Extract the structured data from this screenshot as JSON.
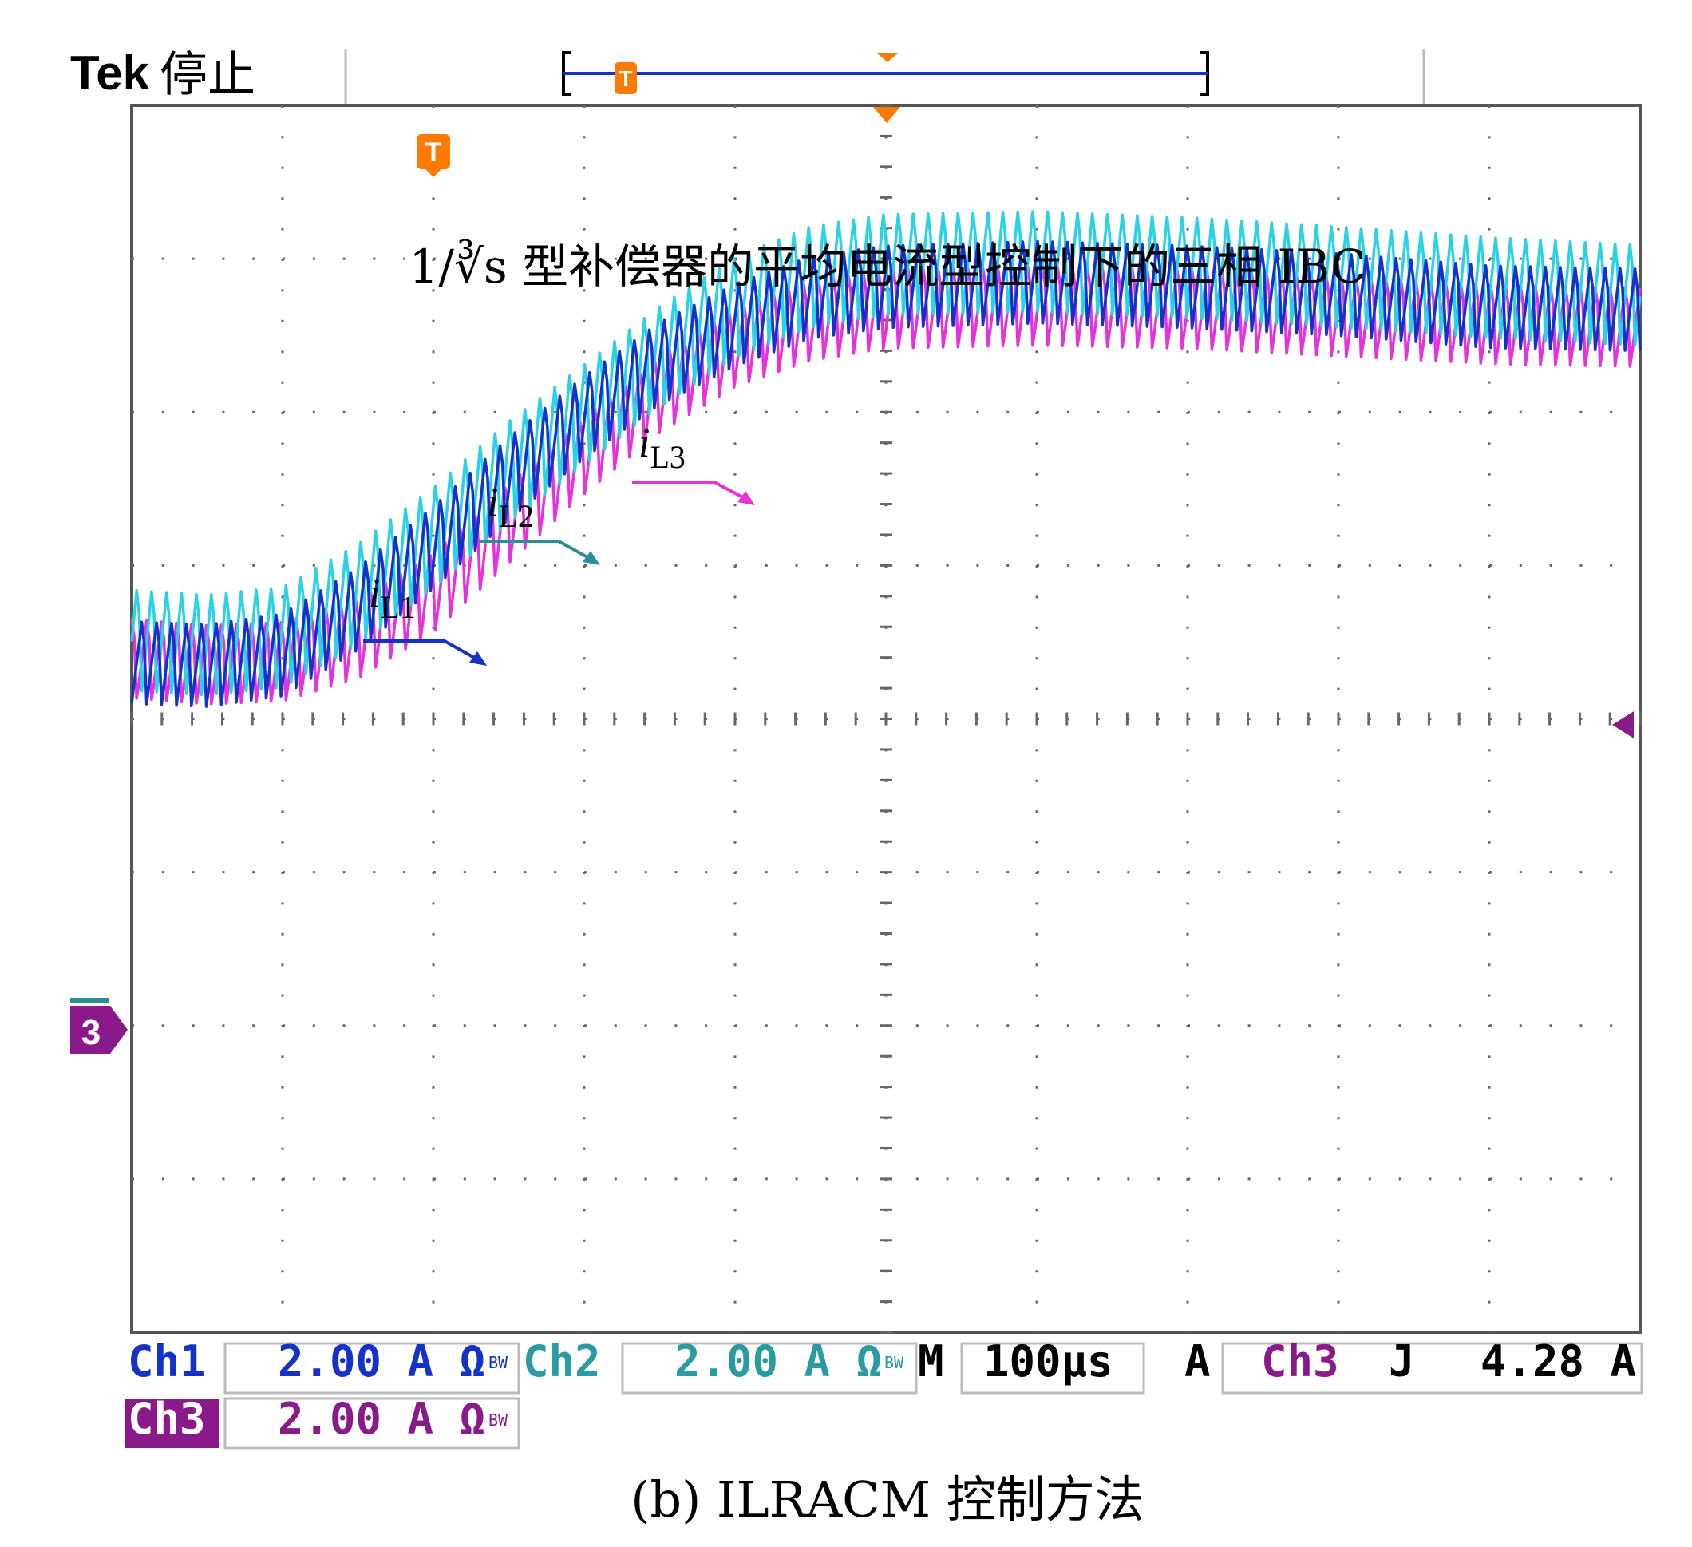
{
  "header": {
    "brand": "Tek",
    "status": "停止"
  },
  "annotation": {
    "title": "1/∛s 型补偿器的平均电流型控制下的三相 IBC",
    "labels": [
      {
        "series": "iL1",
        "italic": "i",
        "sub": "L1"
      },
      {
        "series": "iL2",
        "italic": "i",
        "sub": "L2"
      },
      {
        "series": "iL3",
        "italic": "i",
        "sub": "L3"
      }
    ]
  },
  "markers": {
    "trigger": "T",
    "channel_ground": "3"
  },
  "readout": {
    "ch1": {
      "name": "Ch1",
      "value": "2.00 A Ω",
      "bw": "BW"
    },
    "ch2": {
      "name": "Ch2",
      "value": "2.00 A Ω",
      "bw": "BW"
    },
    "ch3": {
      "name": "Ch3",
      "value": "2.00 A Ω",
      "bw": "BW"
    },
    "timebase": {
      "prefix": "M",
      "value": "100µs"
    },
    "trigger": {
      "mode": "A",
      "source": "Ch3",
      "slope": "Ϳ",
      "level": "4.28 A"
    }
  },
  "caption": "(b) ILRACM 控制方法",
  "colors": {
    "ch1": "#1432c8",
    "ch2": "#2ad2e6",
    "ch3": "#e632dc",
    "trigger": "#ff7a00",
    "label1": "#1432c8",
    "label2": "#2a8f96",
    "label3": "#e632dc",
    "ch3_badge": "#8a1a8a"
  },
  "chart_data": {
    "type": "line",
    "divisions": {
      "x": 10,
      "y": 8
    },
    "x": {
      "unit": "div",
      "range": [
        0,
        10
      ]
    },
    "y": {
      "unit": "div",
      "range": [
        0,
        8
      ],
      "reference_level_div": 2
    },
    "ripple_period_div": 0.099,
    "series": [
      {
        "name": "iL1",
        "ripple_pp_div": 0.6,
        "ripple_phase": 0.0,
        "envelope_mid": [
          [
            0,
            4.4
          ],
          [
            0.5,
            4.38
          ],
          [
            1,
            4.45
          ],
          [
            1.5,
            4.75
          ],
          [
            2,
            5.15
          ],
          [
            2.5,
            5.6
          ],
          [
            3,
            6.0
          ],
          [
            3.5,
            6.35
          ],
          [
            4,
            6.6
          ],
          [
            4.5,
            6.78
          ],
          [
            5,
            6.85
          ],
          [
            6,
            6.88
          ],
          [
            7,
            6.85
          ],
          [
            8,
            6.8
          ],
          [
            9,
            6.72
          ],
          [
            10,
            6.7
          ]
        ]
      },
      {
        "name": "iL2",
        "ripple_pp_div": 0.75,
        "ripple_phase": 0.33,
        "envelope_mid": [
          [
            0,
            4.55
          ],
          [
            0.5,
            4.52
          ],
          [
            1,
            4.57
          ],
          [
            1.5,
            4.85
          ],
          [
            2,
            5.22
          ],
          [
            2.5,
            5.65
          ],
          [
            3,
            6.02
          ],
          [
            3.5,
            6.4
          ],
          [
            4,
            6.72
          ],
          [
            4.5,
            6.92
          ],
          [
            5,
            7.0
          ],
          [
            6,
            7.02
          ],
          [
            7,
            6.98
          ],
          [
            8,
            6.92
          ],
          [
            9,
            6.85
          ],
          [
            10,
            6.8
          ]
        ]
      },
      {
        "name": "iL3",
        "ripple_pp_div": 0.6,
        "ripple_phase": 0.66,
        "envelope_mid": [
          [
            0,
            4.42
          ],
          [
            0.5,
            4.38
          ],
          [
            1,
            4.4
          ],
          [
            1.5,
            4.55
          ],
          [
            2,
            4.85
          ],
          [
            2.5,
            5.3
          ],
          [
            3,
            5.75
          ],
          [
            3.5,
            6.15
          ],
          [
            4,
            6.45
          ],
          [
            4.5,
            6.62
          ],
          [
            5,
            6.7
          ],
          [
            6,
            6.72
          ],
          [
            7,
            6.7
          ],
          [
            8,
            6.65
          ],
          [
            9,
            6.6
          ],
          [
            10,
            6.58
          ]
        ]
      }
    ]
  }
}
